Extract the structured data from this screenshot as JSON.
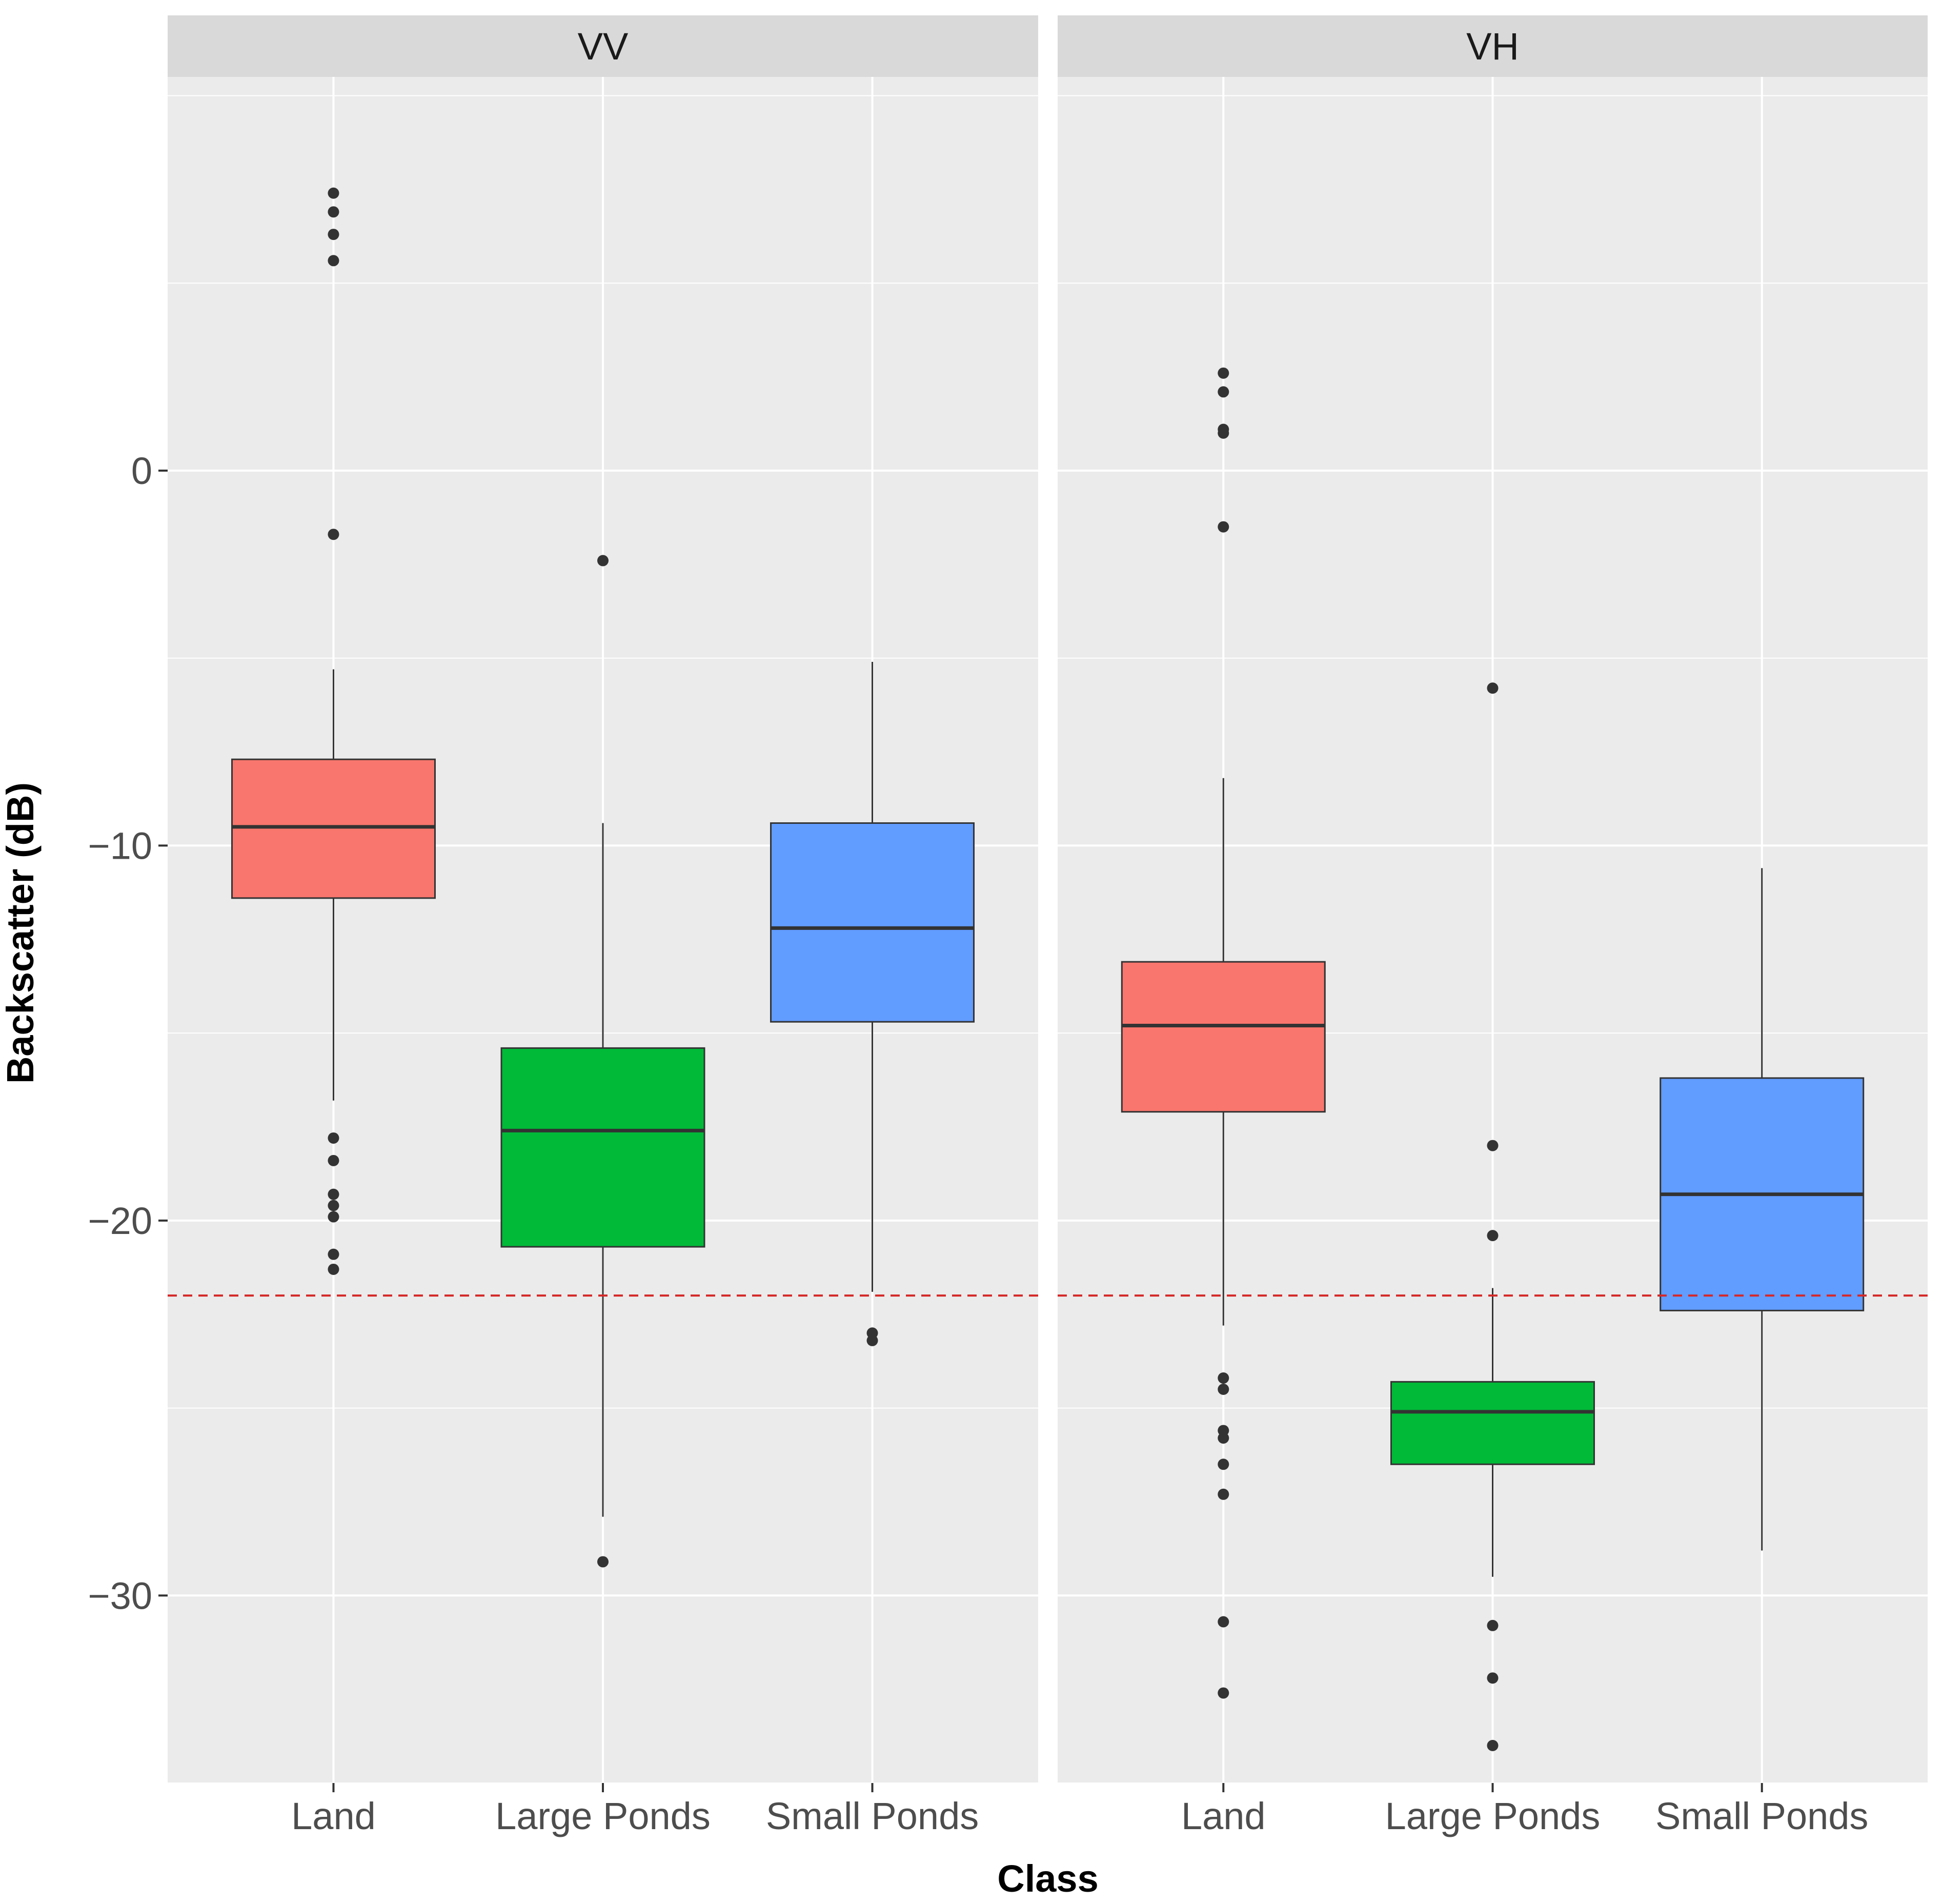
{
  "chart_data": {
    "type": "boxplot",
    "xlabel": "Class",
    "ylabel": "Backscatter (dB)",
    "ylim": [
      -35.0,
      10.5
    ],
    "yticks": [
      0,
      -10,
      -20,
      -30
    ],
    "ytick_labels": [
      "0",
      "−10",
      "−20",
      "−30"
    ],
    "categories": [
      "Land",
      "Large Ponds",
      "Small Ponds"
    ],
    "threshold": -22,
    "colors": {
      "Land": "#F8766D",
      "Large Ponds": "#00BA38",
      "Small Ponds": "#619CFF",
      "threshold": "#D62828",
      "panel_background": "#EBEBEB",
      "strip_background": "#D9D9D9"
    },
    "panels": [
      {
        "strip": "VV",
        "boxes": [
          {
            "category": "Land",
            "whisker_low": -16.8,
            "q1": -11.4,
            "median": -9.5,
            "q3": -7.7,
            "whisker_high": -5.3,
            "outliers": [
              7.4,
              6.9,
              6.3,
              5.6,
              -1.7,
              -17.8,
              -18.4,
              -19.3,
              -19.6,
              -19.9,
              -20.9,
              -21.3
            ]
          },
          {
            "category": "Large Ponds",
            "whisker_low": -27.9,
            "q1": -20.7,
            "median": -17.6,
            "q3": -15.4,
            "whisker_high": -9.4,
            "outliers": [
              -2.4,
              -29.1
            ]
          },
          {
            "category": "Small Ponds",
            "whisker_low": -21.9,
            "q1": -14.7,
            "median": -12.2,
            "q3": -9.4,
            "whisker_high": -5.1,
            "outliers": [
              -23.0,
              -23.2
            ]
          }
        ]
      },
      {
        "strip": "VH",
        "boxes": [
          {
            "category": "Land",
            "whisker_low": -22.8,
            "q1": -17.1,
            "median": -14.8,
            "q3": -13.1,
            "whisker_high": -8.2,
            "outliers": [
              2.6,
              2.1,
              1.1,
              1.0,
              -1.5,
              -24.2,
              -24.5,
              -25.6,
              -25.8,
              -26.5,
              -27.3,
              -30.7,
              -32.6
            ]
          },
          {
            "category": "Large Ponds",
            "whisker_low": -29.5,
            "q1": -26.5,
            "median": -25.1,
            "q3": -24.3,
            "whisker_high": -21.8,
            "outliers": [
              -5.8,
              -18.0,
              -20.4,
              -30.8,
              -32.2,
              -34.0
            ]
          },
          {
            "category": "Small Ponds",
            "whisker_low": -28.8,
            "q1": -22.4,
            "median": -19.3,
            "q3": -16.2,
            "whisker_high": -10.6,
            "outliers": []
          }
        ]
      }
    ]
  }
}
